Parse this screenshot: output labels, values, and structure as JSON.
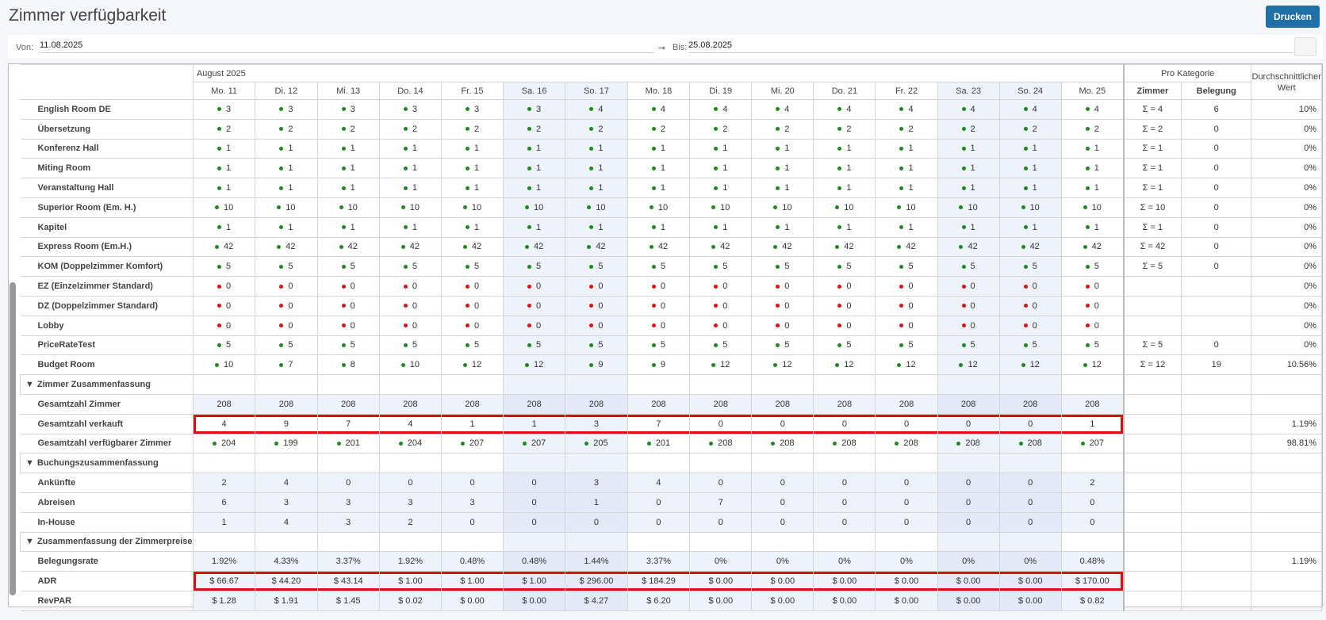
{
  "header": {
    "title": "Zimmer verfügbarkeit",
    "print": "Drucken"
  },
  "filters": {
    "from_label": "Von:",
    "from": "11.08.2025",
    "to_label": "Bis:",
    "to": "25.08.2025"
  },
  "table": {
    "month": "August 2025",
    "days": [
      "Mo. 11",
      "Di. 12",
      "Mi. 13",
      "Do. 14",
      "Fr. 15",
      "Sa. 16",
      "So. 17",
      "Mo. 18",
      "Di. 19",
      "Mi. 20",
      "Do. 21",
      "Fr. 22",
      "Sa. 23",
      "So. 24",
      "Mo. 25"
    ],
    "group_header": "Pro Kategorie",
    "col_rooms": "Zimmer",
    "col_occupancy": "Belegung",
    "col_average": "Durchschnittlicher Wert",
    "rows": [
      {
        "label": "English Room DE",
        "dot": "#1a8a1a",
        "cells": [
          3,
          3,
          3,
          3,
          3,
          3,
          4,
          4,
          4,
          4,
          4,
          4,
          4,
          4,
          4
        ],
        "rooms": "Σ = 4",
        "occupancy": 6,
        "average": "10%"
      },
      {
        "label": "Übersetzung",
        "dot": "#1a8a1a",
        "cells": [
          2,
          2,
          2,
          2,
          2,
          2,
          2,
          2,
          2,
          2,
          2,
          2,
          2,
          2,
          2
        ],
        "rooms": "Σ = 2",
        "occupancy": 0,
        "average": "0%"
      },
      {
        "label": "Konferenz Hall",
        "dot": "#1a8a1a",
        "cells": [
          1,
          1,
          1,
          1,
          1,
          1,
          1,
          1,
          1,
          1,
          1,
          1,
          1,
          1,
          1
        ],
        "rooms": "Σ = 1",
        "occupancy": 0,
        "average": "0%"
      },
      {
        "label": "Miting Room",
        "dot": "#1a8a1a",
        "cells": [
          1,
          1,
          1,
          1,
          1,
          1,
          1,
          1,
          1,
          1,
          1,
          1,
          1,
          1,
          1
        ],
        "rooms": "Σ = 1",
        "occupancy": 0,
        "average": "0%"
      },
      {
        "label": "Veranstaltung Hall",
        "dot": "#1a8a1a",
        "cells": [
          1,
          1,
          1,
          1,
          1,
          1,
          1,
          1,
          1,
          1,
          1,
          1,
          1,
          1,
          1
        ],
        "rooms": "Σ = 1",
        "occupancy": 0,
        "average": "0%"
      },
      {
        "label": "Superior Room (Em. H.)",
        "dot": "#1a8a1a",
        "cells": [
          10,
          10,
          10,
          10,
          10,
          10,
          10,
          10,
          10,
          10,
          10,
          10,
          10,
          10,
          10
        ],
        "rooms": "Σ = 10",
        "occupancy": 0,
        "average": "0%"
      },
      {
        "label": "Kapitel",
        "dot": "#1a8a1a",
        "cells": [
          1,
          1,
          1,
          1,
          1,
          1,
          1,
          1,
          1,
          1,
          1,
          1,
          1,
          1,
          1
        ],
        "rooms": "Σ = 1",
        "occupancy": 0,
        "average": "0%"
      },
      {
        "label": "Express Room (Em.H.)",
        "dot": "#1a8a1a",
        "cells": [
          42,
          42,
          42,
          42,
          42,
          42,
          42,
          42,
          42,
          42,
          42,
          42,
          42,
          42,
          42
        ],
        "rooms": "Σ = 42",
        "occupancy": 0,
        "average": "0%"
      },
      {
        "label": "KOM (Doppelzimmer Komfort)",
        "dot": "#1a8a1a",
        "cells": [
          5,
          5,
          5,
          5,
          5,
          5,
          5,
          5,
          5,
          5,
          5,
          5,
          5,
          5,
          5
        ],
        "rooms": "Σ = 5",
        "occupancy": 0,
        "average": "0%"
      },
      {
        "label": "EZ (Einzelzimmer Standard)",
        "dot": "#e01010",
        "cells": [
          0,
          0,
          0,
          0,
          0,
          0,
          0,
          0,
          0,
          0,
          0,
          0,
          0,
          0,
          0
        ],
        "rooms": null,
        "occupancy": null,
        "average": "0%"
      },
      {
        "label": "DZ (Doppelzimmer Standard)",
        "dot": "#e01010",
        "cells": [
          0,
          0,
          0,
          0,
          0,
          0,
          0,
          0,
          0,
          0,
          0,
          0,
          0,
          0,
          0
        ],
        "rooms": null,
        "occupancy": null,
        "average": "0%"
      },
      {
        "label": "Lobby",
        "dot": "#e01010",
        "cells": [
          0,
          0,
          0,
          0,
          0,
          0,
          0,
          0,
          0,
          0,
          0,
          0,
          0,
          0,
          0
        ],
        "rooms": null,
        "occupancy": null,
        "average": "0%"
      },
      {
        "label": "PriceRateTest",
        "dot": "#1a8a1a",
        "cells": [
          5,
          5,
          5,
          5,
          5,
          5,
          5,
          5,
          5,
          5,
          5,
          5,
          5,
          5,
          5
        ],
        "rooms": "Σ = 5",
        "occupancy": 0,
        "average": "0%"
      },
      {
        "label": "Budget Room",
        "dot": "#1a8a1a",
        "cells": [
          10,
          7,
          8,
          10,
          12,
          12,
          9,
          9,
          12,
          12,
          12,
          12,
          12,
          12,
          12
        ],
        "rooms": "Σ = 12",
        "occupancy": 19,
        "average": "10.56%"
      },
      {
        "section": "Zimmer Zusammenfassung"
      },
      {
        "label": "Gesamtzahl Zimmer",
        "shaded": true,
        "cells": [
          208,
          208,
          208,
          208,
          208,
          208,
          208,
          208,
          208,
          208,
          208,
          208,
          208,
          208,
          208
        ],
        "rooms": null,
        "occupancy": null,
        "average": null
      },
      {
        "label": "Gesamtzahl verkauft",
        "highlighted": true,
        "cells": [
          4,
          9,
          7,
          4,
          1,
          1,
          3,
          7,
          0,
          0,
          0,
          0,
          0,
          0,
          1
        ],
        "rooms": null,
        "occupancy": null,
        "average": "1.19%"
      },
      {
        "label": "Gesamtzahl verfügbarer Zimmer",
        "dot": "#1a8a1a",
        "cells": [
          204,
          199,
          201,
          204,
          207,
          207,
          205,
          201,
          208,
          208,
          208,
          208,
          208,
          208,
          207
        ],
        "rooms": null,
        "occupancy": null,
        "average": "98.81%"
      },
      {
        "section": "Buchungszusammenfassung"
      },
      {
        "label": "Ankünfte",
        "shaded": true,
        "cells": [
          2,
          4,
          0,
          0,
          0,
          0,
          3,
          4,
          0,
          0,
          0,
          0,
          0,
          0,
          2
        ],
        "rooms": null,
        "occupancy": null,
        "average": null
      },
      {
        "label": "Abreisen",
        "shaded": true,
        "cells": [
          6,
          3,
          3,
          3,
          3,
          0,
          1,
          0,
          7,
          0,
          0,
          0,
          0,
          0,
          0
        ],
        "rooms": null,
        "occupancy": null,
        "average": null
      },
      {
        "label": "In-House",
        "shaded": true,
        "cells": [
          1,
          4,
          3,
          2,
          0,
          0,
          0,
          0,
          0,
          0,
          0,
          0,
          0,
          0,
          0
        ],
        "rooms": null,
        "occupancy": null,
        "average": null
      },
      {
        "section": "Zusammenfassung der Zimmerpreise"
      },
      {
        "label": "Belegungsrate",
        "shaded": true,
        "cells": [
          "1.92%",
          "4.33%",
          "3.37%",
          "1.92%",
          "0.48%",
          "0.48%",
          "1.44%",
          "3.37%",
          "0%",
          "0%",
          "0%",
          "0%",
          "0%",
          "0%",
          "0.48%"
        ],
        "rooms": null,
        "occupancy": null,
        "average": "1.19%"
      },
      {
        "label": "ADR",
        "shaded": true,
        "highlighted": true,
        "cells": [
          "$ 66.67",
          "$ 44.20",
          "$ 43.14",
          "$ 1.00",
          "$ 1.00",
          "$ 1.00",
          "$ 296.00",
          "$ 184.29",
          "$ 0.00",
          "$ 0.00",
          "$ 0.00",
          "$ 0.00",
          "$ 0.00",
          "$ 0.00",
          "$ 170.00"
        ],
        "rooms": null,
        "occupancy": null,
        "average": null
      },
      {
        "label": "RevPAR",
        "shaded": true,
        "cells": [
          "$ 1.28",
          "$ 1.91",
          "$ 1.45",
          "$ 0.02",
          "$ 0.00",
          "$ 0.00",
          "$ 4.27",
          "$ 6.20",
          "$ 0.00",
          "$ 0.00",
          "$ 0.00",
          "$ 0.00",
          "$ 0.00",
          "$ 0.00",
          "$ 0.82"
        ],
        "rooms": null,
        "occupancy": null,
        "average": null
      }
    ]
  }
}
